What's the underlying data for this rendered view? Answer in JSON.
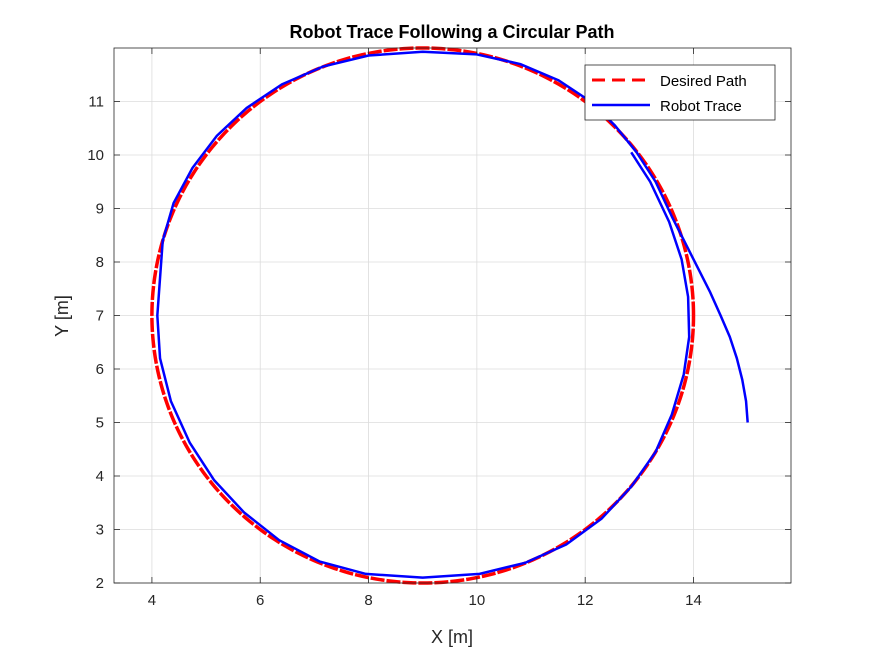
{
  "chart_data": {
    "type": "line",
    "title": "Robot Trace Following a Circular Path",
    "xlabel": "X [m]",
    "ylabel": "Y [m]",
    "xlim": [
      3.3,
      15.8
    ],
    "ylim": [
      2,
      12
    ],
    "xticks": [
      "4",
      "6",
      "8",
      "10",
      "12",
      "14"
    ],
    "yticks": [
      "2",
      "3",
      "4",
      "5",
      "6",
      "7",
      "8",
      "9",
      "10",
      "11"
    ],
    "xtick_values": [
      4,
      6,
      8,
      10,
      12,
      14
    ],
    "ytick_values": [
      2,
      3,
      4,
      5,
      6,
      7,
      8,
      9,
      10,
      11
    ],
    "grid": true,
    "legend_position": "top-right",
    "series": [
      {
        "name": "Desired Path",
        "color": "#ff0000",
        "style": "dashed",
        "shape": "circle",
        "center": [
          9,
          7
        ],
        "radius": 5
      },
      {
        "name": "Robot Trace",
        "color": "#0000ff",
        "style": "solid",
        "x": [
          15.0,
          14.97,
          14.9,
          14.8,
          14.67,
          14.5,
          14.3,
          14.05,
          13.8,
          13.6,
          13.3,
          12.95,
          12.55,
          12.1,
          11.5,
          10.8,
          10.0,
          9.0,
          8.0,
          7.15,
          6.4,
          5.75,
          5.2,
          4.75,
          4.4,
          4.2,
          4.1,
          4.15,
          4.35,
          4.7,
          5.15,
          5.7,
          6.35,
          7.1,
          7.95,
          9.0,
          10.05,
          10.9,
          11.65,
          12.3,
          12.85,
          13.3,
          13.6,
          13.82,
          13.92,
          13.9,
          13.78,
          13.55,
          13.2,
          12.85
        ],
        "y": [
          5.0,
          5.4,
          5.8,
          6.2,
          6.6,
          7.0,
          7.45,
          7.95,
          8.45,
          8.85,
          9.5,
          10.05,
          10.55,
          11.0,
          11.4,
          11.7,
          11.88,
          11.93,
          11.86,
          11.65,
          11.32,
          10.88,
          10.36,
          9.76,
          9.1,
          8.4,
          7.0,
          6.2,
          5.4,
          4.62,
          3.92,
          3.32,
          2.8,
          2.4,
          2.17,
          2.1,
          2.17,
          2.38,
          2.72,
          3.2,
          3.8,
          4.45,
          5.15,
          5.9,
          6.6,
          7.35,
          8.05,
          8.75,
          9.5,
          10.05
        ]
      }
    ]
  }
}
